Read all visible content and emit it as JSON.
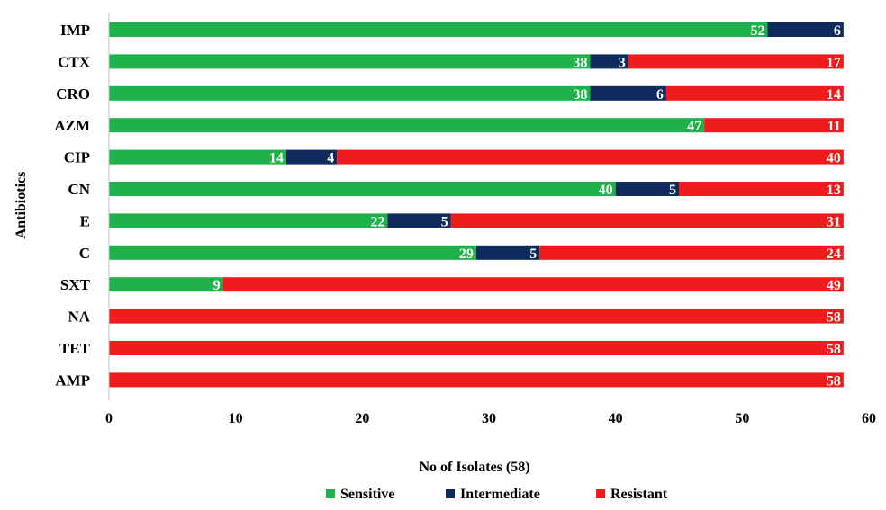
{
  "chart_data": {
    "type": "bar",
    "orientation": "horizontal",
    "stacked": true,
    "title": "",
    "xlabel": "No of Isolates (58)",
    "ylabel": "Antibiotics",
    "xlim": [
      0,
      60
    ],
    "xticks": [
      0,
      10,
      20,
      30,
      40,
      50,
      60
    ],
    "grid": false,
    "legend_position": "bottom",
    "categories": [
      "IMP",
      "CTX",
      "CRO",
      "AZM",
      "CIP",
      "CN",
      "E",
      "C",
      "SXT",
      "NA",
      "TET",
      "AMP"
    ],
    "series": [
      {
        "name": "Sensitive",
        "color": "#1fb24a",
        "values": [
          52,
          38,
          38,
          47,
          14,
          40,
          22,
          29,
          9,
          0,
          0,
          0
        ]
      },
      {
        "name": "Intermediate",
        "color": "#0f2a5c",
        "values": [
          6,
          3,
          6,
          0,
          4,
          5,
          5,
          5,
          0,
          0,
          0,
          0
        ]
      },
      {
        "name": "Resistant",
        "color": "#ee1c1c",
        "values": [
          0,
          17,
          14,
          11,
          40,
          13,
          31,
          24,
          49,
          58,
          58,
          58
        ]
      }
    ]
  }
}
